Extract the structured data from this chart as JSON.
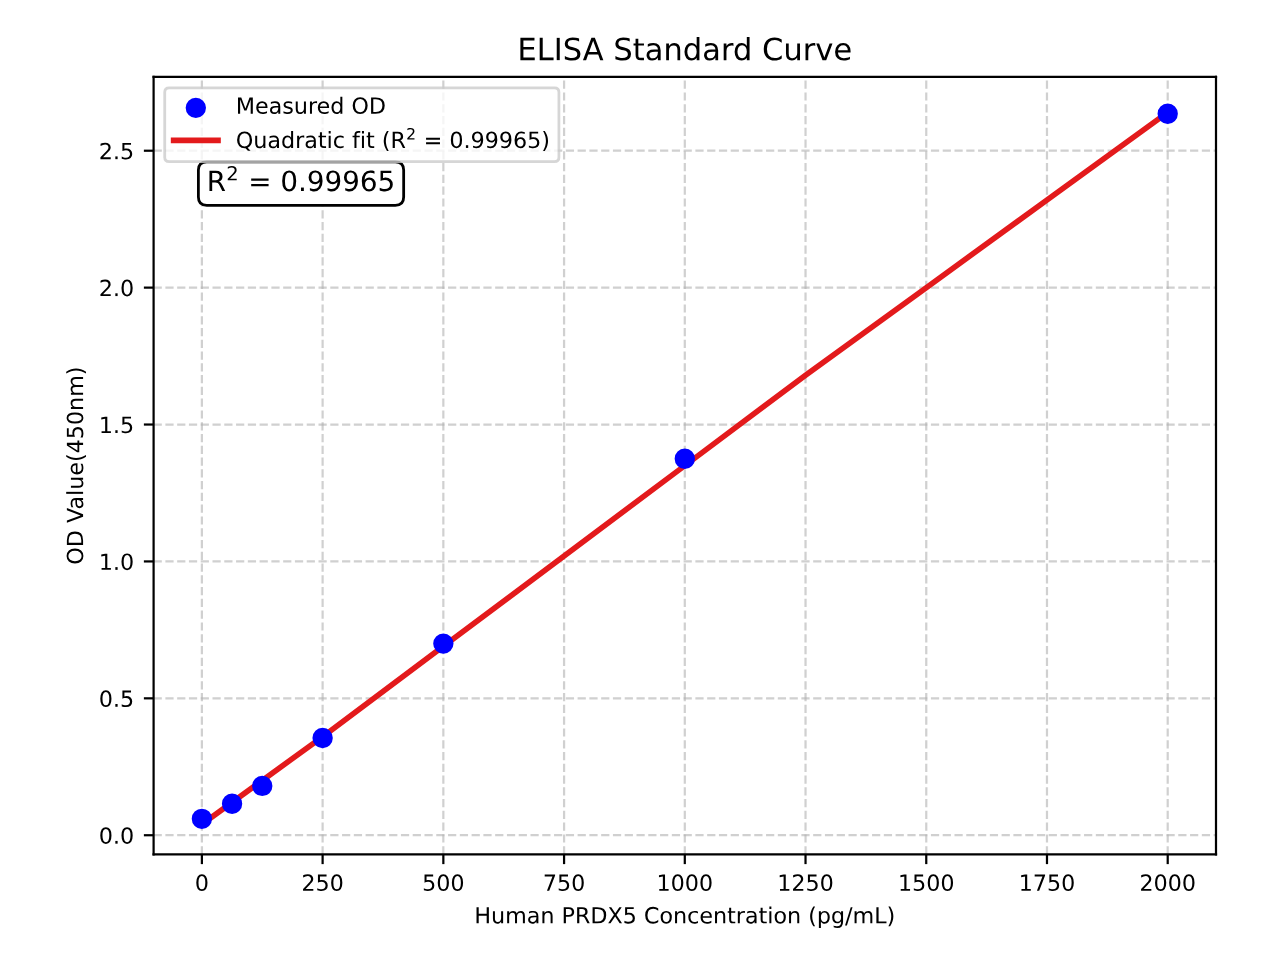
{
  "chart_data": {
    "type": "scatter",
    "title": "ELISA Standard Curve",
    "xlabel": "Human PRDX5 Concentration (pg/mL)",
    "ylabel": "OD Value(450nm)",
    "series": [
      {
        "name": "Measured OD",
        "color": "#0000ff",
        "marker": "circle",
        "x": [
          0,
          62.5,
          125,
          250,
          500,
          1000,
          2000
        ],
        "values": [
          0.06,
          0.115,
          0.18,
          0.355,
          0.7,
          1.375,
          2.635
        ]
      },
      {
        "name": "Quadratic fit (R$^{2}$ = 0.99965)",
        "type": "line",
        "color": "#e31a1c",
        "marker": "none",
        "line_style": "solid",
        "x": [
          0,
          250,
          500,
          750,
          1000,
          1250,
          1500,
          1750,
          2000
        ],
        "values": [
          0.04,
          0.36,
          0.69,
          1.02,
          1.35,
          1.68,
          2.0,
          2.32,
          2.64
        ]
      }
    ],
    "annotations": [
      "R$^{2}$ = 0.99965"
    ],
    "xlim": [
      -100,
      2100
    ],
    "xticks": [
      0,
      250,
      500,
      750,
      1000,
      1250,
      1500,
      1750,
      2000
    ],
    "ylim": [
      -0.07,
      2.77
    ],
    "yticks": [
      {
        "value": 0,
        "label": "0.0"
      },
      0.5,
      {
        "value": 1,
        "label": "1.0"
      },
      1.5,
      {
        "value": 2,
        "label": "2.0"
      },
      2.5
    ],
    "grid": true,
    "legend": "top left"
  }
}
